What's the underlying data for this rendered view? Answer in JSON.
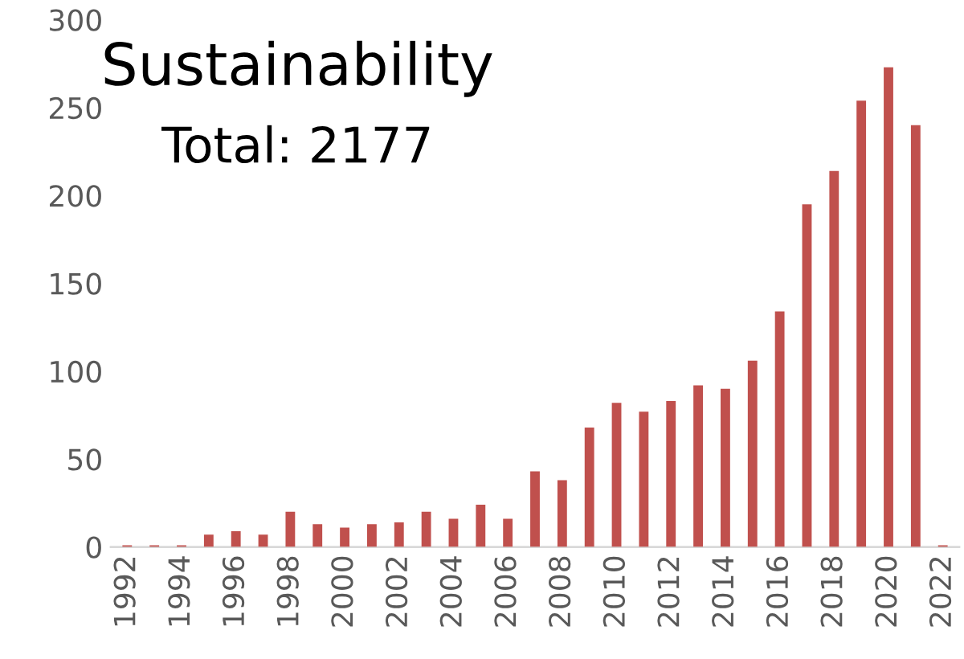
{
  "chart_data": {
    "type": "bar",
    "title": "Sustainability",
    "annotations": [
      "Total: 2177"
    ],
    "categories": [
      "1992",
      null,
      "1994",
      null,
      "1996",
      null,
      "1998",
      null,
      "2000",
      null,
      "2002",
      null,
      "2004",
      null,
      "2006",
      null,
      "2008",
      null,
      "2010",
      null,
      "2012",
      null,
      "2014",
      null,
      "2016",
      null,
      "2018",
      null,
      "2020",
      null,
      "2022"
    ],
    "values": [
      1,
      1,
      1,
      7,
      9,
      7,
      20,
      13,
      11,
      13,
      14,
      20,
      16,
      24,
      16,
      43,
      38,
      68,
      82,
      77,
      83,
      92,
      90,
      106,
      134,
      195,
      214,
      254,
      273,
      240,
      1
    ],
    "color": "#c0504d",
    "ylim": [
      0,
      300
    ],
    "yticks": [
      0,
      50,
      100,
      150,
      200,
      250,
      300
    ],
    "grid": false,
    "legend": false
  }
}
